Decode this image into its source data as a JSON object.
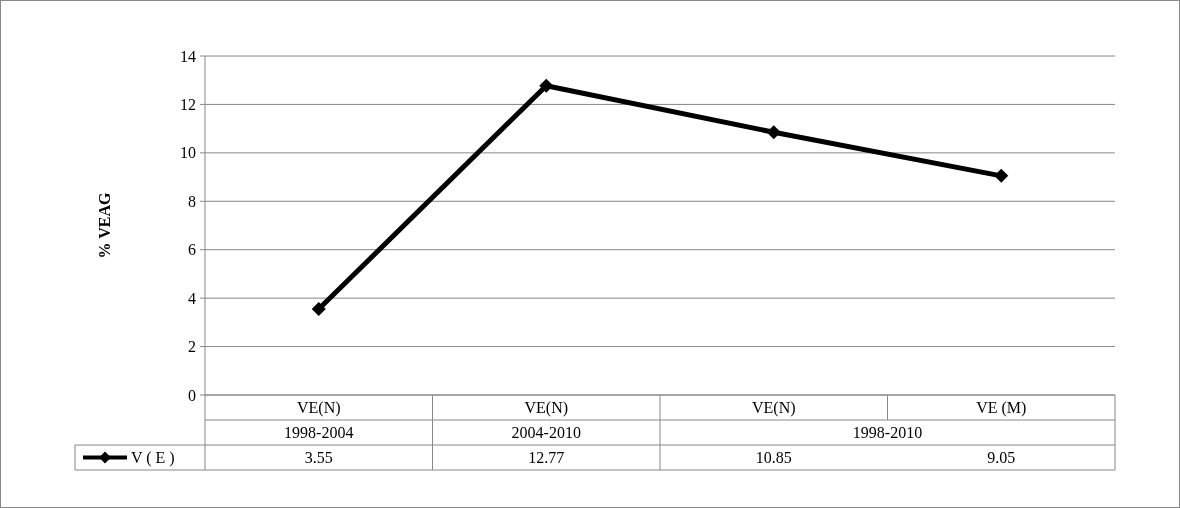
{
  "chart_data": {
    "type": "line",
    "ylabel": "% VEAG",
    "categories": [
      "VE(N)",
      "VE(N)",
      "VE(N)",
      "VE (M)"
    ],
    "annotations": [
      "1998-2004",
      "2004-2010",
      "1998-2010"
    ],
    "series": [
      {
        "name": "V ( E )",
        "color": "#000000",
        "values": [
          3.55,
          12.77,
          10.85,
          9.05
        ]
      }
    ],
    "ylim": [
      0,
      14
    ],
    "yticks": [
      0,
      2,
      4,
      6,
      8,
      10,
      12,
      14
    ],
    "grid": "y",
    "marker": "diamond",
    "line_style": "solid",
    "data_labels": true,
    "legend": "bottom"
  }
}
